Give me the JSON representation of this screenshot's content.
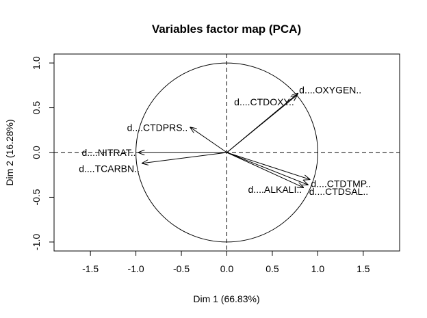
{
  "chart_data": {
    "type": "scatter",
    "title": "Variables factor map (PCA)",
    "xlabel": "Dim 1 (66.83%)",
    "ylabel": "Dim 2 (16.28%)",
    "xlim": [
      -1.9,
      1.9
    ],
    "ylim": [
      -1.1,
      1.1
    ],
    "xticks": [
      -1.5,
      -1.0,
      -0.5,
      0.0,
      0.5,
      1.0,
      1.5
    ],
    "xtick_labels": [
      "-1.5",
      "-1.0",
      "-0.5",
      "0.0",
      "0.5",
      "1.0",
      "1.5"
    ],
    "yticks": [
      -1.0,
      -0.5,
      0.0,
      0.5,
      1.0
    ],
    "ytick_labels": [
      "-1.0",
      "-0.5",
      "0.0",
      "0.5",
      "1.0"
    ],
    "unit_circle": true,
    "reference_lines": "dashed at x=0 and y=0",
    "grid": false,
    "variables": [
      {
        "label": "d....CTDOXY..",
        "x": 0.77,
        "y": 0.64
      },
      {
        "label": "d....OXYGEN..",
        "x": 0.78,
        "y": 0.66
      },
      {
        "label": "d....CTDPRS..",
        "x": -0.4,
        "y": 0.28
      },
      {
        "label": "d....NITRAT..",
        "x": -0.97,
        "y": 0.0
      },
      {
        "label": "d....TCARBN..",
        "x": -0.93,
        "y": -0.12
      },
      {
        "label": "d....ALKALI..",
        "x": 0.84,
        "y": -0.39
      },
      {
        "label": "d....CTDTMP..",
        "x": 0.91,
        "y": -0.3
      },
      {
        "label": "d....CTDSAL..",
        "x": 0.89,
        "y": -0.36
      }
    ]
  }
}
